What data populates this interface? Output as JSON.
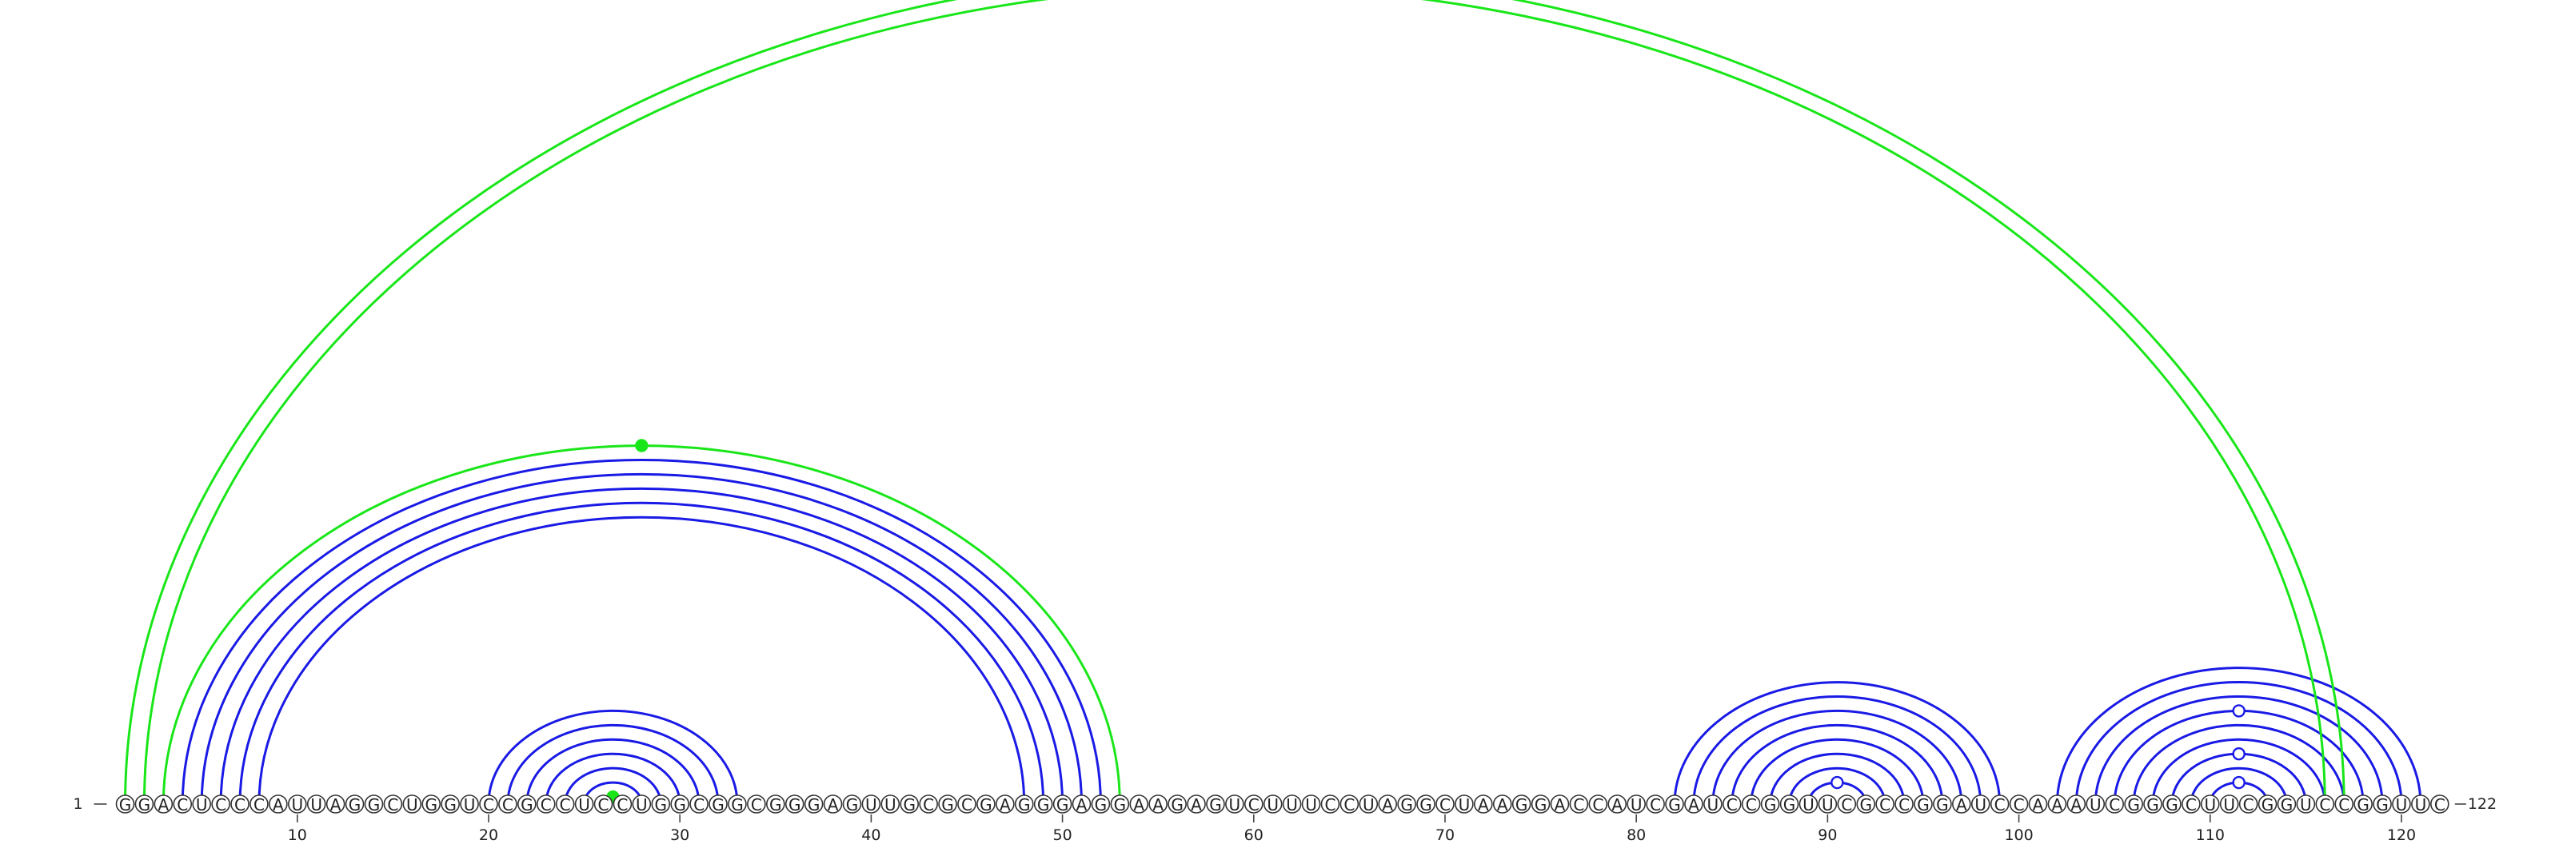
{
  "sequence": "GGACUCCCAUUAGGCUGGUCCGCCUCCUGGCGGCGGGAGUUGCGCGAGGGAGGAAGAGUCUUUCCUAGGCUAAGGACCAUCGAUCCGGUUCGCCGGAUCCAAAUCGGGCUUCGGUCCGGUUC",
  "start_label": "1",
  "end_label": "122",
  "ticks": [
    "10",
    "20",
    "30",
    "40",
    "50",
    "60",
    "70",
    "80",
    "90",
    "100",
    "110",
    "120"
  ],
  "colors": {
    "standard_pair": "#1a1ae6",
    "noncanonical_pair": "#19e619",
    "nucleotide_outline": "#333333",
    "marker_open": "#ffffff"
  },
  "pairs": {
    "standard": [
      [
        4,
        52
      ],
      [
        5,
        51
      ],
      [
        6,
        50
      ],
      [
        7,
        49
      ],
      [
        8,
        48
      ],
      [
        20,
        33
      ],
      [
        21,
        32
      ],
      [
        22,
        31
      ],
      [
        23,
        30
      ],
      [
        24,
        29
      ],
      [
        25,
        28
      ],
      [
        82,
        99
      ],
      [
        83,
        98
      ],
      [
        84,
        97
      ],
      [
        85,
        96
      ],
      [
        86,
        95
      ],
      [
        87,
        94
      ],
      [
        88,
        93
      ],
      [
        89,
        92
      ],
      [
        102,
        121
      ],
      [
        103,
        120
      ],
      [
        104,
        119
      ],
      [
        105,
        118
      ],
      [
        106,
        117
      ],
      [
        107,
        116
      ],
      [
        108,
        115
      ],
      [
        109,
        114
      ],
      [
        110,
        113
      ]
    ],
    "noncanonical": [
      [
        1,
        117
      ],
      [
        2,
        116
      ],
      [
        3,
        53
      ],
      [
        26,
        27
      ]
    ]
  },
  "markers": [
    {
      "pair": [
        3,
        53
      ],
      "style": "filled"
    },
    {
      "pair": [
        26,
        27
      ],
      "style": "filled"
    },
    {
      "pair": [
        89,
        92
      ],
      "style": "open"
    },
    {
      "pair": [
        110,
        113
      ],
      "style": "open"
    },
    {
      "pair": [
        108,
        115
      ],
      "style": "open"
    },
    {
      "pair": [
        105,
        118
      ],
      "style": "open"
    }
  ]
}
